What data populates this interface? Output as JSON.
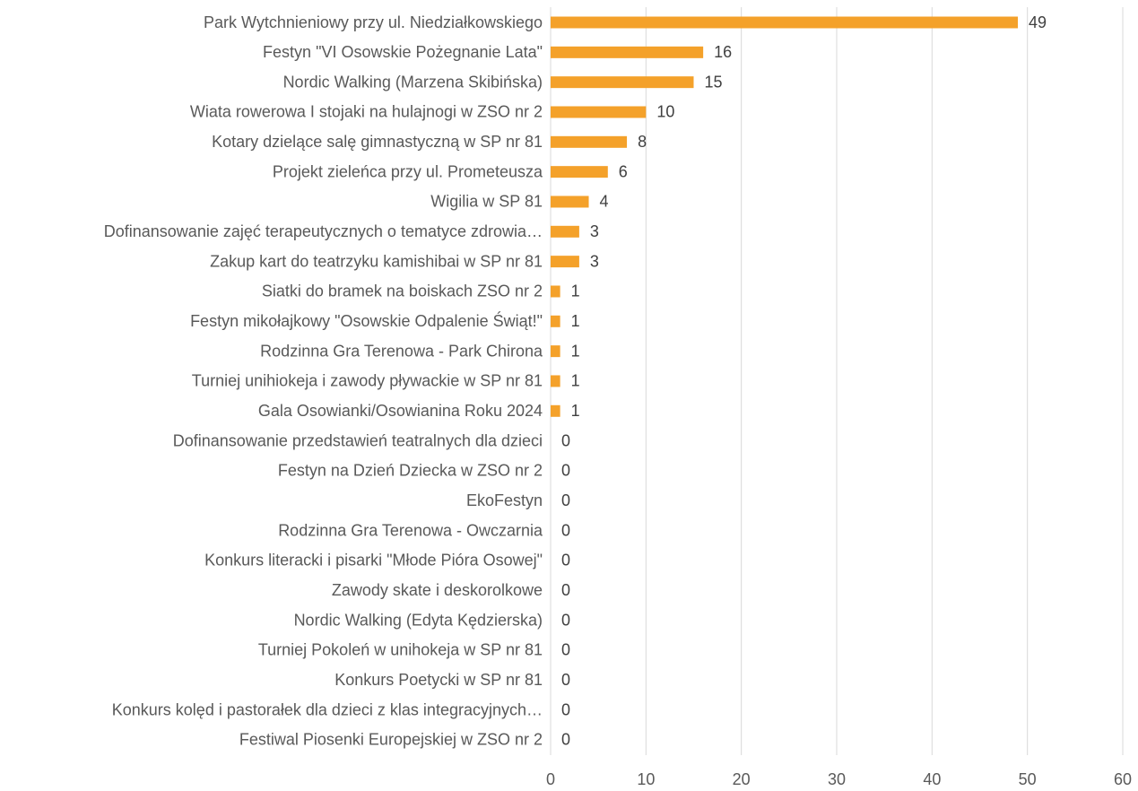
{
  "chart_data": {
    "type": "bar",
    "orientation": "horizontal",
    "categories": [
      "Park Wytchnieniowy przy ul. Niedziałkowskiego",
      "Festyn \"VI Osowskie Pożegnanie Lata\"",
      "Nordic Walking (Marzena Skibińska)",
      "Wiata rowerowa I stojaki na hulajnogi w ZSO nr 2",
      "Kotary dzielące salę gimnastyczną w SP nr 81",
      "Projekt zieleńca przy ul. Prometeusza",
      "Wigilia w SP 81",
      "Dofinansowanie zajęć terapeutycznych o tematyce zdrowia…",
      "Zakup kart do teatrzyku kamishibai w SP nr 81",
      "Siatki do bramek na boiskach ZSO nr 2",
      "Festyn mikołajkowy \"Osowskie Odpalenie Świąt!\"",
      "Rodzinna Gra Terenowa - Park Chirona",
      "Turniej unihiokeja i zawody pływackie w SP nr 81",
      "Gala Osowianki/Osowianina Roku 2024",
      "Dofinansowanie przedstawień teatralnych dla dzieci",
      "Festyn na Dzień Dziecka w ZSO nr 2",
      "EkoFestyn",
      "Rodzinna Gra Terenowa - Owczarnia",
      "Konkurs literacki i pisarki \"Młode Pióra Osowej\"",
      "Zawody skate i deskorolkowe",
      "Nordic Walking (Edyta Kędzierska)",
      "Turniej Pokoleń w unihokeja w SP nr 81",
      "Konkurs Poetycki w SP nr 81",
      "Konkurs kolęd i pastorałek dla dzieci z klas integracyjnych…",
      "Festiwal Piosenki Europejskiej w ZSO nr 2"
    ],
    "values": [
      49,
      16,
      15,
      10,
      8,
      6,
      4,
      3,
      3,
      1,
      1,
      1,
      1,
      1,
      0,
      0,
      0,
      0,
      0,
      0,
      0,
      0,
      0,
      0,
      0
    ],
    "color": "#f4a12a",
    "xlim": [
      0,
      60
    ],
    "xticks": [
      0,
      10,
      20,
      30,
      40,
      50,
      60
    ],
    "grid": true
  }
}
